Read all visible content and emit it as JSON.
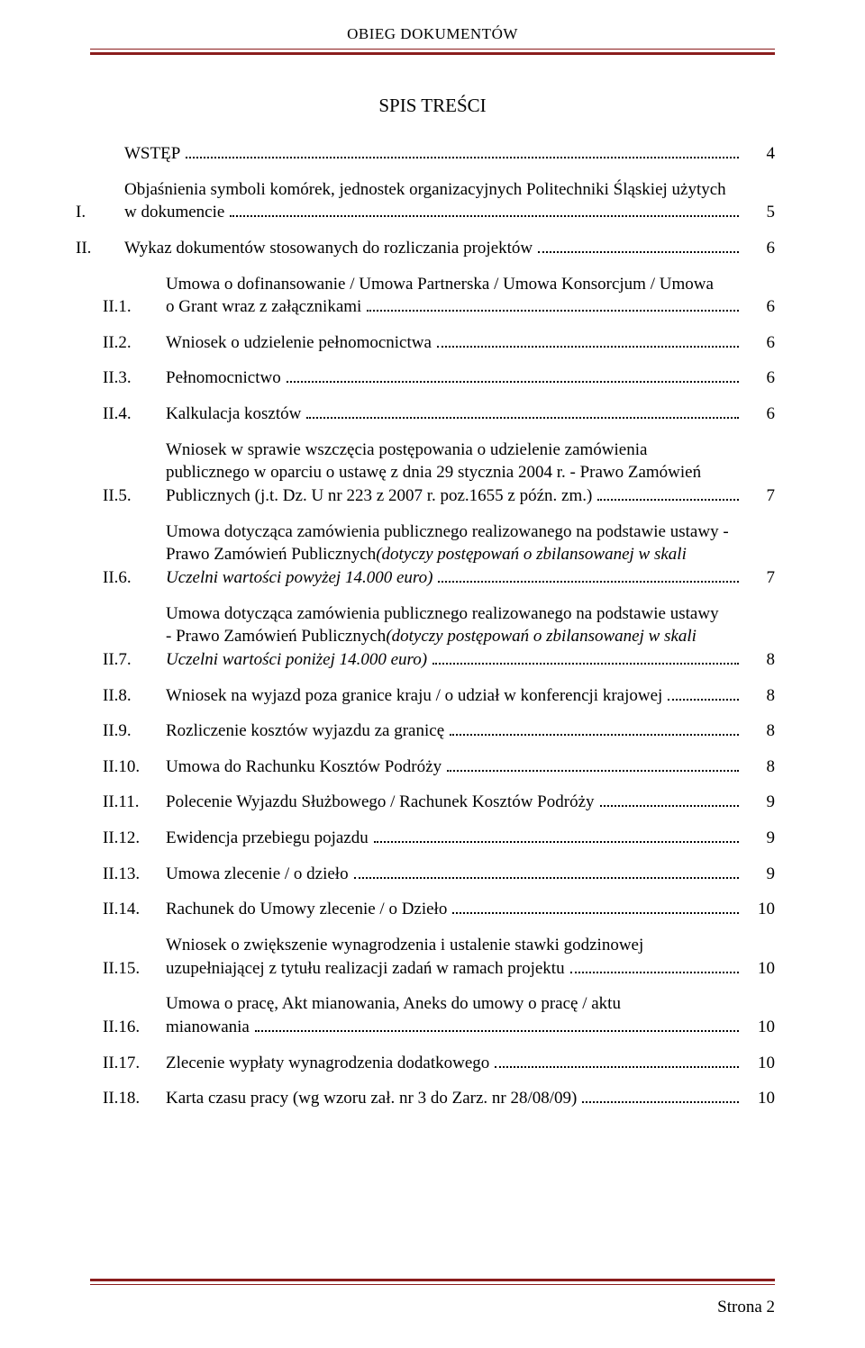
{
  "running_head": "OBIEG DOKUMENTÓW",
  "toc_title": "SPIS TREŚCI",
  "footer": "Strona 2",
  "colors": {
    "rule": "#8b1d1d",
    "text": "#000000",
    "background": "#ffffff"
  },
  "typography": {
    "family": "Times New Roman",
    "body_size_pt": 14,
    "title_size_pt": 16
  },
  "entries": [
    {
      "num": "WSTĘP",
      "num_is_label": true,
      "lines": [
        ""
      ],
      "page": "4",
      "top": true
    },
    {
      "num": "I.",
      "lines": [
        "Objaśnienia symboli komórek, jednostek organizacyjnych Politechniki Śląskiej użytych",
        "w dokumencie"
      ],
      "page": "5",
      "top": true
    },
    {
      "num": "II.",
      "lines": [
        "Wykaz dokumentów stosowanych do rozliczania projektów"
      ],
      "page": "6",
      "top": true
    },
    {
      "num": "II.1.",
      "lines": [
        "Umowa o dofinansowanie / Umowa Partnerska / Umowa Konsorcjum / Umowa",
        "o Grant wraz z załącznikami"
      ],
      "page": "6"
    },
    {
      "num": "II.2.",
      "lines": [
        "Wniosek o udzielenie pełnomocnictwa"
      ],
      "page": "6"
    },
    {
      "num": "II.3.",
      "lines": [
        "Pełnomocnictwo"
      ],
      "page": "6"
    },
    {
      "num": "II.4.",
      "lines": [
        "Kalkulacja kosztów"
      ],
      "page": "6"
    },
    {
      "num": "II.5.",
      "lines": [
        "Wniosek w sprawie wszczęcia postępowania o udzielenie zamówienia",
        "publicznego w oparciu o ustawę z dnia 29 stycznia 2004 r. - Prawo Zamówień",
        "Publicznych (j.t. Dz. U nr 223 z 2007 r. poz.1655 z późn. zm.)"
      ],
      "page": "7"
    },
    {
      "num": "II.6.",
      "lines_mixed": [
        {
          "t": "Umowa dotycząca zamówienia publicznego realizowanego na podstawie ustawy -"
        },
        {
          "t": "Prawo Zamówień Publicznych ",
          "tail_italic": "(dotyczy postępowań o zbilansowanej w skali"
        },
        {
          "italic": "Uczelni wartości powyżej 14.000 euro)"
        }
      ],
      "page": "7"
    },
    {
      "num": "II.7.",
      "lines_mixed": [
        {
          "t": "Umowa  dotycząca zamówienia publicznego realizowanego na podstawie ustawy"
        },
        {
          "t": "- Prawo Zamówień Publicznych ",
          "tail_italic": "(dotyczy postępowań o zbilansowanej w skali"
        },
        {
          "italic": "Uczelni wartości poniżej 14.000 euro)"
        }
      ],
      "page": "8"
    },
    {
      "num": "II.8.",
      "lines": [
        "Wniosek na wyjazd poza granice kraju / o udział w konferencji krajowej"
      ],
      "page": "8"
    },
    {
      "num": "II.9.",
      "lines": [
        "Rozliczenie kosztów wyjazdu za granicę"
      ],
      "page": "8"
    },
    {
      "num": "II.10.",
      "lines": [
        "Umowa do Rachunku Kosztów Podróży"
      ],
      "page": "8"
    },
    {
      "num": "II.11.",
      "lines": [
        "Polecenie Wyjazdu Służbowego / Rachunek Kosztów Podróży"
      ],
      "page": "9"
    },
    {
      "num": "II.12.",
      "lines": [
        "Ewidencja przebiegu pojazdu"
      ],
      "page": "9"
    },
    {
      "num": "II.13.",
      "lines": [
        "Umowa zlecenie / o dzieło"
      ],
      "page": "9"
    },
    {
      "num": "II.14.",
      "lines": [
        "Rachunek do Umowy zlecenie / o Dzieło"
      ],
      "page": "10"
    },
    {
      "num": "II.15.",
      "lines": [
        "Wniosek o zwiększenie wynagrodzenia i ustalenie stawki godzinowej",
        "uzupełniającej z tytułu realizacji zadań w ramach projektu"
      ],
      "page": "10"
    },
    {
      "num": "II.16.",
      "lines": [
        "Umowa o pracę, Akt mianowania, Aneks do umowy o pracę / aktu",
        "mianowania"
      ],
      "page": "10"
    },
    {
      "num": "II.17.",
      "lines": [
        "Zlecenie wypłaty wynagrodzenia dodatkowego"
      ],
      "page": "10"
    },
    {
      "num": "II.18.",
      "lines": [
        "Karta czasu pracy (wg wzoru zał. nr 3 do Zarz. nr 28/08/09)"
      ],
      "page": "10"
    }
  ]
}
